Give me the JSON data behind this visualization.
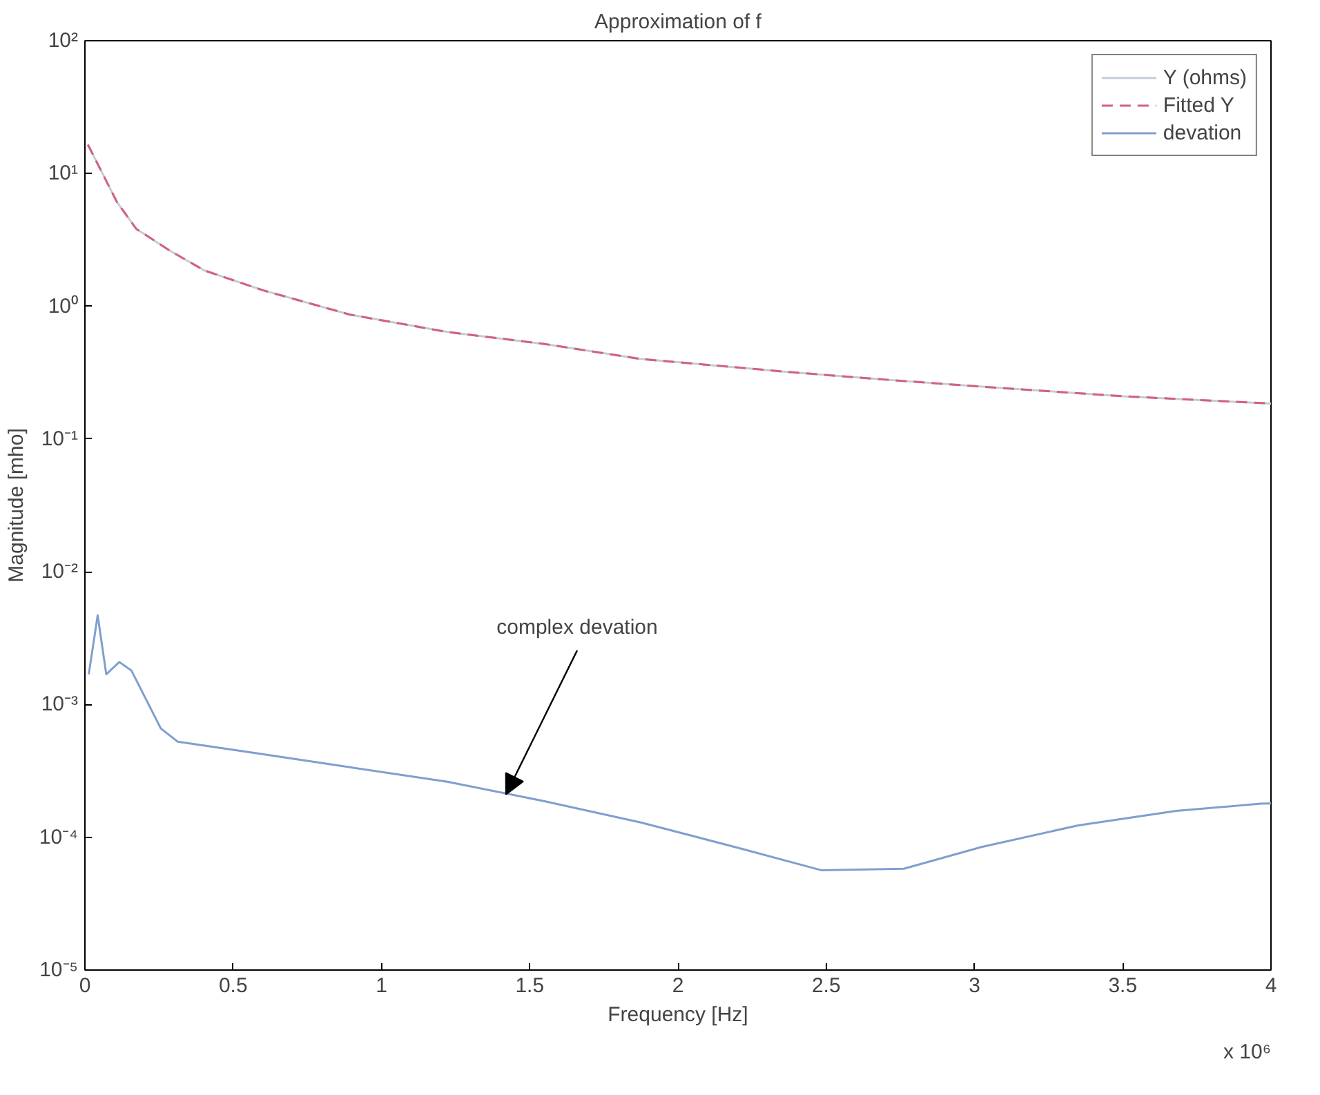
{
  "chart_data": {
    "type": "line",
    "title": "Approximation of f",
    "xlabel": "Frequency [Hz]",
    "ylabel": "Magnitude [mho]",
    "log": "y",
    "grid": false,
    "legend": "top right",
    "marker": "none",
    "xlim": [
      0,
      4
    ],
    "ylim": [
      1e-05,
      100
    ],
    "xticks": [
      0,
      0.5,
      1,
      1.5,
      2,
      2.5,
      3,
      3.5,
      4
    ],
    "yticks": [
      {
        "value": 1e-05,
        "label": "10⁻⁵"
      },
      {
        "value": 0.0001,
        "label": "10⁻⁴"
      },
      {
        "value": 0.001,
        "label": "10⁻³"
      },
      {
        "value": 0.01,
        "label": "10⁻²"
      },
      {
        "value": 0.1,
        "label": "10⁻¹"
      },
      {
        "value": 1,
        "label": "10⁰"
      },
      {
        "value": 10,
        "label": "10¹"
      },
      {
        "value": 100,
        "label": "10²"
      }
    ],
    "annotations": [
      {
        "text": "complex devation",
        "x": 1.42,
        "y": 0.00021
      },
      "x 10⁶"
    ],
    "series": [
      {
        "name": "Y (ohms)",
        "color": "#c4cad8",
        "line_style": "solid",
        "x": [
          0.01,
          0.108,
          0.173,
          0.288,
          0.403,
          0.6,
          0.894,
          1.222,
          1.55,
          1.877,
          2.24,
          2.37,
          2.7,
          3.0,
          3.5,
          4.0
        ],
        "values": [
          16.5,
          6.1,
          3.83,
          2.61,
          1.86,
          1.32,
          0.865,
          0.64,
          0.52,
          0.4,
          0.34,
          0.32,
          0.28,
          0.25,
          0.21,
          0.185
        ]
      },
      {
        "name": "Fitted Y",
        "color": "#d4607e",
        "line_style": "dashed",
        "x": [
          0.01,
          0.108,
          0.173,
          0.288,
          0.403,
          0.6,
          0.894,
          1.222,
          1.55,
          1.877,
          2.24,
          2.37,
          2.7,
          3.0,
          3.5,
          4.0
        ],
        "values": [
          16.5,
          6.1,
          3.83,
          2.61,
          1.86,
          1.32,
          0.865,
          0.64,
          0.52,
          0.4,
          0.34,
          0.32,
          0.28,
          0.25,
          0.21,
          0.185
        ]
      },
      {
        "name": "devation",
        "color": "#7f9fcf",
        "line_style": "solid",
        "x": [
          0.013,
          0.043,
          0.072,
          0.116,
          0.157,
          0.256,
          0.313,
          0.567,
          0.894,
          1.222,
          1.55,
          1.877,
          2.205,
          2.483,
          2.762,
          3.024,
          3.35,
          3.68,
          3.965,
          4.0
        ],
        "values": [
          0.00169,
          0.0047,
          0.00169,
          0.00209,
          0.0018,
          0.00066,
          0.000525,
          0.000433,
          0.000337,
          0.000262,
          0.000187,
          0.000129,
          8.3e-05,
          5.65e-05,
          5.8e-05,
          8.45e-05,
          0.000123,
          0.000158,
          0.000179,
          0.00018
        ]
      }
    ]
  }
}
